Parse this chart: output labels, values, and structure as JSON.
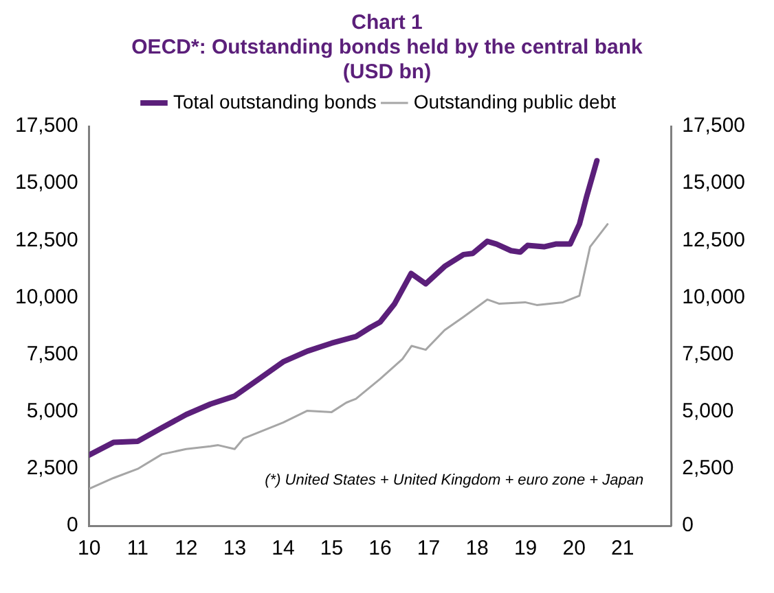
{
  "chart_data": {
    "type": "line",
    "title": "Chart 1",
    "subtitle": "OECD*:  Outstanding bonds held by the central bank (USD bn)",
    "annotations": [
      "(*) United States + United Kingdom + euro zone + Japan"
    ],
    "xlim": [
      10,
      22
    ],
    "xticks": [
      10,
      11,
      12,
      13,
      14,
      15,
      16,
      17,
      18,
      19,
      20,
      21,
      {
        "value": 22,
        "label": null
      }
    ],
    "ylim": [
      0,
      17500
    ],
    "yticks": [
      0,
      {
        "value": 2500,
        "label": "2,500"
      },
      {
        "value": 5000,
        "label": "5,000"
      },
      {
        "value": 7500,
        "label": "7,500"
      },
      {
        "value": 10000,
        "label": "10,000"
      },
      {
        "value": 12500,
        "label": "12,500"
      },
      {
        "value": 15000,
        "label": "15,000"
      },
      {
        "value": 17500,
        "label": "17,500"
      }
    ],
    "y2lim": [
      0,
      17500
    ],
    "y2ticks": [
      0,
      {
        "value": 2500,
        "label": "2,500"
      },
      {
        "value": 5000,
        "label": "5,000"
      },
      {
        "value": 7500,
        "label": "7,500"
      },
      {
        "value": 10000,
        "label": "10,000"
      },
      {
        "value": 12500,
        "label": "12,500"
      },
      {
        "value": 15000,
        "label": "15,000"
      },
      {
        "value": 17500,
        "label": "17,500"
      }
    ],
    "grid": false,
    "legend": "top",
    "marker": "none",
    "line_style": "solid",
    "series": [
      {
        "name": "Total outstanding bonds",
        "color": "#5b1f7a",
        "x": [
          10,
          10.5,
          11,
          11.5,
          12,
          12.5,
          13,
          13.5,
          14,
          14.5,
          15,
          15.5,
          15.8,
          16,
          16.3,
          16.64,
          16.94,
          17.33,
          17.72,
          17.91,
          18.21,
          18.4,
          18.7,
          18.89,
          19.04,
          19.38,
          19.62,
          19.92,
          20.11,
          20.26,
          20.47
        ],
        "values": [
          3100,
          3650,
          3700,
          4290,
          4870,
          5330,
          5680,
          6430,
          7180,
          7650,
          8000,
          8290,
          8690,
          8920,
          9730,
          11050,
          10600,
          11360,
          11880,
          11930,
          12460,
          12340,
          12050,
          11990,
          12280,
          12220,
          12340,
          12340,
          13210,
          14430,
          15990
        ]
      },
      {
        "name": "Outstanding public debt",
        "color": "#a6a6a6",
        "x": [
          10,
          10.5,
          11,
          11.5,
          12,
          12.5,
          12.66,
          13,
          13.18,
          14,
          14.5,
          15,
          15.3,
          15.5,
          16,
          16.46,
          16.65,
          16.94,
          17.33,
          17.72,
          18.21,
          18.45,
          18.99,
          19.23,
          19.77,
          20.11,
          20.33,
          20.54,
          20.69
        ],
        "values": [
          1620,
          2090,
          2490,
          3130,
          3360,
          3480,
          3530,
          3360,
          3820,
          4520,
          5040,
          4980,
          5390,
          5560,
          6430,
          7300,
          7880,
          7710,
          8570,
          9150,
          9910,
          9730,
          9790,
          9670,
          9790,
          10080,
          12220,
          12800,
          13210
        ]
      }
    ]
  }
}
